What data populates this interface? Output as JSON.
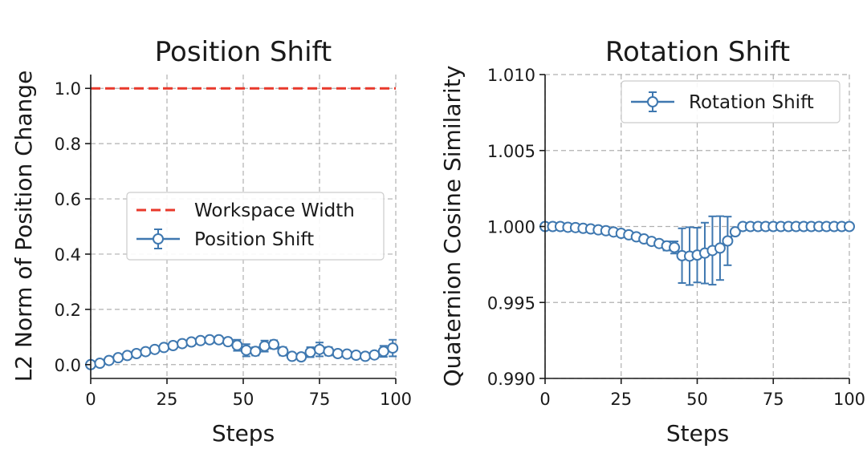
{
  "chart_data": [
    {
      "type": "line",
      "title": "Position Shift",
      "xlabel": "Steps",
      "ylabel": "L2 Norm of Position Change",
      "xlim": [
        0,
        100
      ],
      "ylim": [
        -0.05,
        1.05
      ],
      "xticks": [
        "0",
        "25",
        "50",
        "75",
        "100"
      ],
      "yticks": [
        "0.0",
        "0.2",
        "0.4",
        "0.6",
        "0.8",
        "1.0"
      ],
      "grid": true,
      "legend_position": "center-right",
      "series": [
        {
          "name": "Workspace Width",
          "style": "dashed",
          "color": "#e8392b",
          "x": [
            0,
            100
          ],
          "y": [
            1.0,
            1.0
          ]
        },
        {
          "name": "Position Shift",
          "style": "errorbar",
          "color": "#3f78b0",
          "x": [
            0,
            3,
            6,
            9,
            12,
            15,
            18,
            21,
            24,
            27,
            30,
            33,
            36,
            39,
            42,
            45,
            48,
            51,
            54,
            57,
            60,
            63,
            66,
            69,
            72,
            75,
            78,
            81,
            84,
            87,
            90,
            93,
            96,
            99
          ],
          "y": [
            0.0,
            0.005,
            0.015,
            0.025,
            0.033,
            0.04,
            0.047,
            0.055,
            0.062,
            0.069,
            0.076,
            0.082,
            0.087,
            0.09,
            0.09,
            0.083,
            0.07,
            0.052,
            0.048,
            0.067,
            0.073,
            0.048,
            0.03,
            0.028,
            0.045,
            0.055,
            0.048,
            0.04,
            0.038,
            0.034,
            0.03,
            0.035,
            0.048,
            0.06
          ],
          "err": [
            0.0,
            0.003,
            0.005,
            0.006,
            0.007,
            0.008,
            0.008,
            0.009,
            0.009,
            0.01,
            0.01,
            0.011,
            0.011,
            0.012,
            0.012,
            0.013,
            0.02,
            0.022,
            0.015,
            0.02,
            0.015,
            0.015,
            0.01,
            0.012,
            0.018,
            0.025,
            0.015,
            0.012,
            0.01,
            0.01,
            0.01,
            0.012,
            0.02,
            0.03
          ]
        }
      ]
    },
    {
      "type": "line",
      "title": "Rotation Shift",
      "xlabel": "Steps",
      "ylabel": "Quaternion Cosine Similarity",
      "xlim": [
        0,
        100
      ],
      "ylim": [
        0.99,
        1.01
      ],
      "xticks": [
        "0",
        "25",
        "50",
        "75",
        "100"
      ],
      "yticks": [
        "0.990",
        "0.995",
        "1.000",
        "1.005",
        "1.010"
      ],
      "grid": true,
      "legend_position": "top-right",
      "series": [
        {
          "name": "Rotation Shift",
          "style": "errorbar",
          "color": "#3f78b0",
          "x": [
            0,
            2.5,
            5,
            7.5,
            10,
            12.5,
            15,
            17.5,
            20,
            22.5,
            25,
            27.5,
            30,
            32.5,
            35,
            37.5,
            40,
            42.5,
            45,
            47.5,
            50,
            52.5,
            55,
            57.5,
            60,
            62.5,
            65,
            67.5,
            70,
            72.5,
            75,
            77.5,
            80,
            82.5,
            85,
            87.5,
            90,
            92.5,
            95,
            97.5,
            100
          ],
          "y": [
            1.0,
            1.0,
            1.0,
            0.99995,
            0.99993,
            0.99988,
            0.99984,
            0.99978,
            0.99972,
            0.99964,
            0.99955,
            0.99945,
            0.99932,
            0.99918,
            0.99902,
            0.99888,
            0.99872,
            0.99862,
            0.99808,
            0.99805,
            0.99812,
            0.99825,
            0.99842,
            0.99858,
            0.99905,
            0.99965,
            1.0,
            1.0,
            1.0,
            1.0,
            1.0,
            1.0,
            1.0,
            1.0,
            1.0,
            1.0,
            1.0,
            1.0,
            1.0,
            1.0,
            1.0
          ],
          "err": [
            0.0,
            0.0,
            0.0,
            0.0,
            0.0,
            0.0,
            0.0,
            0.0,
            0.0,
            0.0,
            5e-05,
            5e-05,
            8e-05,
            0.0001,
            0.00015,
            0.0002,
            0.0003,
            0.0004,
            0.0018,
            0.0019,
            0.0018,
            0.002,
            0.00225,
            0.0021,
            0.0016,
            0.0001,
            0.0,
            0.0,
            0.0,
            0.0,
            0.0,
            0.0,
            0.0,
            0.0,
            0.0,
            0.0,
            0.0,
            0.0,
            0.0,
            0.0,
            0.0
          ]
        }
      ]
    }
  ]
}
